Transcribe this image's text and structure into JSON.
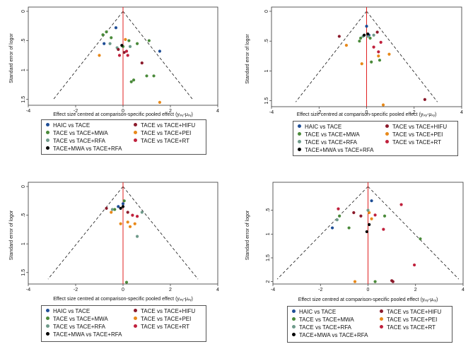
{
  "colors": {
    "HAIC vs TACE": "#1f4e96",
    "TACE vs TACE+HIFU": "#8b1a2b",
    "TACE vs TACE+MWA": "#4a8a3a",
    "TACE vs TACE+PEI": "#e8891a",
    "TACE vs TACE+RFA": "#6e9a8a",
    "TACE vs TACE+RT": "#c0203c",
    "TACE+MWA vs TACE+RFA": "#000000"
  },
  "chart_data": [
    {
      "type": "scatter",
      "subtype": "comparison-adjusted funnel plot",
      "xlabel": "Effect size centred at comparison-specific pooled effect (yᵢₓᵧ-μₓᵧ)",
      "ylabel": "Standard error of logor",
      "xlim": [
        -4,
        4
      ],
      "ylim": [
        0,
        1.6
      ],
      "xticks": [
        "-4",
        "-2",
        "0",
        "2",
        "4"
      ],
      "yticks": [
        "0",
        ".5",
        "1",
        "1.5"
      ],
      "legend": [
        "HAIC vs TACE",
        "TACE vs TACE+HIFU",
        "TACE vs TACE+MWA",
        "TACE vs TACE+PEI",
        "TACE vs TACE+RFA",
        "TACE vs TACE+RT",
        "TACE+MWA vs TACE+RFA"
      ],
      "points": [
        {
          "g": "HAIC vs TACE",
          "x": -0.3,
          "y": 0.28
        },
        {
          "g": "HAIC vs TACE",
          "x": -0.8,
          "y": 0.55
        },
        {
          "g": "HAIC vs TACE",
          "x": 1.55,
          "y": 0.68
        },
        {
          "g": "TACE vs TACE+MWA",
          "x": -0.85,
          "y": 0.4
        },
        {
          "g": "TACE vs TACE+MWA",
          "x": -0.7,
          "y": 0.35
        },
        {
          "g": "TACE vs TACE+MWA",
          "x": -0.5,
          "y": 0.45
        },
        {
          "g": "TACE vs TACE+MWA",
          "x": 0.25,
          "y": 0.5
        },
        {
          "g": "TACE vs TACE+MWA",
          "x": 0.6,
          "y": 0.55
        },
        {
          "g": "TACE vs TACE+MWA",
          "x": 1.1,
          "y": 0.5
        },
        {
          "g": "TACE vs TACE+MWA",
          "x": 0.35,
          "y": 1.2
        },
        {
          "g": "TACE vs TACE+MWA",
          "x": 0.45,
          "y": 1.17
        },
        {
          "g": "TACE vs TACE+MWA",
          "x": 1.0,
          "y": 1.1
        },
        {
          "g": "TACE vs TACE+MWA",
          "x": 1.3,
          "y": 1.1
        },
        {
          "g": "TACE vs TACE+MWA",
          "x": 0.0,
          "y": 0.6
        },
        {
          "g": "TACE vs TACE+PEI",
          "x": -1.0,
          "y": 0.75
        },
        {
          "g": "TACE vs TACE+PEI",
          "x": 0.1,
          "y": 0.48
        },
        {
          "g": "TACE vs TACE+PEI",
          "x": 1.55,
          "y": 1.55
        },
        {
          "g": "TACE vs TACE+RFA",
          "x": -0.55,
          "y": 0.55
        },
        {
          "g": "TACE vs TACE+RFA",
          "x": 0.3,
          "y": 0.6
        },
        {
          "g": "TACE vs TACE+RFA",
          "x": -0.25,
          "y": 0.62
        },
        {
          "g": "TACE vs TACE+HIFU",
          "x": -0.2,
          "y": 0.65
        },
        {
          "g": "TACE vs TACE+HIFU",
          "x": 0.05,
          "y": 0.7
        },
        {
          "g": "TACE vs TACE+HIFU",
          "x": 0.8,
          "y": 0.88
        },
        {
          "g": "TACE vs TACE+RT",
          "x": 0.2,
          "y": 0.75
        },
        {
          "g": "TACE vs TACE+RT",
          "x": 0.15,
          "y": 0.68
        },
        {
          "g": "TACE vs TACE+RT",
          "x": -0.15,
          "y": 0.75
        },
        {
          "g": "TACE+MWA vs TACE+RFA",
          "x": -0.05,
          "y": 0.58
        }
      ]
    },
    {
      "type": "scatter",
      "subtype": "comparison-adjusted funnel plot",
      "xlabel": "Effect size centred at comparison-specific pooled effect (yᵢₓᵧ-μₓᵧ)",
      "ylabel": "Standard error of logor",
      "xlim": [
        -4,
        4
      ],
      "ylim": [
        0,
        1.6
      ],
      "xticks": [
        "-4",
        "-2",
        "0",
        "2",
        "4"
      ],
      "yticks": [
        "0",
        ".5",
        "1",
        "1.5"
      ],
      "legend": [
        "HAIC vs TACE",
        "TACE vs TACE+HIFU",
        "TACE vs TACE+MWA",
        "TACE vs TACE+PEI",
        "TACE vs TACE+RFA",
        "TACE vs TACE+RT",
        "TACE+MWA vs TACE+RFA"
      ],
      "points": [
        {
          "g": "HAIC vs TACE",
          "x": 0.0,
          "y": 0.25
        },
        {
          "g": "HAIC vs TACE",
          "x": 0.1,
          "y": 0.4
        },
        {
          "g": "TACE vs TACE+HIFU",
          "x": -1.15,
          "y": 0.42
        },
        {
          "g": "TACE vs TACE+HIFU",
          "x": 0.45,
          "y": 0.35
        },
        {
          "g": "TACE vs TACE+HIFU",
          "x": 2.45,
          "y": 1.48
        },
        {
          "g": "TACE vs TACE+MWA",
          "x": -0.3,
          "y": 0.5
        },
        {
          "g": "TACE vs TACE+MWA",
          "x": -0.25,
          "y": 0.45
        },
        {
          "g": "TACE vs TACE+MWA",
          "x": 0.15,
          "y": 0.45
        },
        {
          "g": "TACE vs TACE+MWA",
          "x": 0.2,
          "y": 0.85
        },
        {
          "g": "TACE vs TACE+MWA",
          "x": 0.55,
          "y": 0.82
        },
        {
          "g": "TACE vs TACE+PEI",
          "x": -0.85,
          "y": 0.57
        },
        {
          "g": "TACE vs TACE+PEI",
          "x": 0.95,
          "y": 0.72
        },
        {
          "g": "TACE vs TACE+PEI",
          "x": 0.5,
          "y": 0.75
        },
        {
          "g": "TACE vs TACE+PEI",
          "x": -0.2,
          "y": 0.88
        },
        {
          "g": "TACE vs TACE+PEI",
          "x": 0.7,
          "y": 1.57
        },
        {
          "g": "TACE vs TACE+RFA",
          "x": -0.15,
          "y": 0.42
        },
        {
          "g": "TACE vs TACE+RFA",
          "x": 0.05,
          "y": 0.42
        },
        {
          "g": "TACE vs TACE+RFA",
          "x": 0.3,
          "y": 0.4
        },
        {
          "g": "TACE vs TACE+RT",
          "x": 0.6,
          "y": 0.52
        },
        {
          "g": "TACE vs TACE+RT",
          "x": 0.3,
          "y": 0.6
        },
        {
          "g": "TACE vs TACE+RT",
          "x": 0.5,
          "y": 0.68
        },
        {
          "g": "TACE+MWA vs TACE+RFA",
          "x": 0.05,
          "y": 0.38
        },
        {
          "g": "TACE+MWA vs TACE+RFA",
          "x": -0.1,
          "y": 0.4
        }
      ]
    },
    {
      "type": "scatter",
      "subtype": "comparison-adjusted funnel plot",
      "xlabel": "Effect size centred at comparison-specific pooled effect (yᵢₓᵧ-μₓᵧ)",
      "ylabel": "Standard error of logor",
      "xlim": [
        -4,
        4
      ],
      "ylim": [
        0,
        1.7
      ],
      "xticks": [
        "-4",
        "-2",
        "0",
        "2",
        "4"
      ],
      "yticks": [
        "0",
        ".5",
        "1",
        "1.5"
      ],
      "legend": [
        "HAIC vs TACE",
        "TACE vs TACE+HIFU",
        "TACE vs TACE+MWA",
        "TACE vs TACE+PEI",
        "TACE vs TACE+RFA",
        "TACE vs TACE+RT",
        "TACE+MWA vs TACE+RFA"
      ],
      "points": [
        {
          "g": "HAIC vs TACE",
          "x": -0.2,
          "y": 0.35
        },
        {
          "g": "HAIC vs TACE",
          "x": 0.0,
          "y": 0.3
        },
        {
          "g": "TACE vs TACE+HIFU",
          "x": -0.7,
          "y": 0.38
        },
        {
          "g": "TACE vs TACE+HIFU",
          "x": 0.2,
          "y": 0.45
        },
        {
          "g": "TACE vs TACE+MWA",
          "x": -0.35,
          "y": 0.4
        },
        {
          "g": "TACE vs TACE+MWA",
          "x": 0.05,
          "y": 0.25
        },
        {
          "g": "TACE vs TACE+MWA",
          "x": 0.15,
          "y": 1.67
        },
        {
          "g": "TACE vs TACE+PEI",
          "x": -0.5,
          "y": 0.45
        },
        {
          "g": "TACE vs TACE+PEI",
          "x": -0.1,
          "y": 0.65
        },
        {
          "g": "TACE vs TACE+PEI",
          "x": 0.2,
          "y": 0.62
        },
        {
          "g": "TACE vs TACE+PEI",
          "x": 0.3,
          "y": 0.7
        },
        {
          "g": "TACE vs TACE+PEI",
          "x": 0.5,
          "y": 0.65
        },
        {
          "g": "TACE vs TACE+RFA",
          "x": -0.45,
          "y": 0.4
        },
        {
          "g": "TACE vs TACE+RFA",
          "x": 0.8,
          "y": 0.45
        },
        {
          "g": "TACE vs TACE+RFA",
          "x": 0.6,
          "y": 0.87
        },
        {
          "g": "TACE vs TACE+RT",
          "x": 0.4,
          "y": 0.5
        },
        {
          "g": "TACE vs TACE+RT",
          "x": 0.6,
          "y": 0.52
        },
        {
          "g": "TACE+MWA vs TACE+RFA",
          "x": -0.1,
          "y": 0.38
        },
        {
          "g": "TACE+MWA vs TACE+RFA",
          "x": 0.0,
          "y": 0.35
        }
      ]
    },
    {
      "type": "scatter",
      "subtype": "comparison-adjusted funnel plot",
      "xlabel": "Effect size centred at comparison-specific pooled effect (yᵢₓᵧ-μₓᵧ)",
      "ylabel": "Standard error of logor",
      "xlim": [
        -4,
        4
      ],
      "ylim": [
        0,
        2.05
      ],
      "xticks": [
        "-4",
        "-2",
        "0",
        "2",
        "4"
      ],
      "yticks": [
        ".5",
        "1",
        "1.5",
        "2"
      ],
      "legend": [
        "HAIC vs TACE",
        "TACE vs TACE+HIFU",
        "TACE vs TACE+MWA",
        "TACE vs TACE+PEI",
        "TACE vs TACE+RFA",
        "TACE vs TACE+RT",
        "TACE+MWA vs TACE+RFA"
      ],
      "points": [
        {
          "g": "HAIC vs TACE",
          "x": -1.5,
          "y": 0.87
        },
        {
          "g": "HAIC vs TACE",
          "x": 0.15,
          "y": 0.3
        },
        {
          "g": "TACE vs TACE+HIFU",
          "x": -0.6,
          "y": 0.55
        },
        {
          "g": "TACE vs TACE+HIFU",
          "x": -0.3,
          "y": 0.62
        },
        {
          "g": "TACE vs TACE+HIFU",
          "x": 1.0,
          "y": 1.98
        },
        {
          "g": "TACE vs TACE+HIFU",
          "x": 1.05,
          "y": 2.0
        },
        {
          "g": "TACE vs TACE+MWA",
          "x": -0.8,
          "y": 0.87
        },
        {
          "g": "TACE vs TACE+MWA",
          "x": -1.2,
          "y": 0.62
        },
        {
          "g": "TACE vs TACE+MWA",
          "x": 0.7,
          "y": 0.62
        },
        {
          "g": "TACE vs TACE+MWA",
          "x": 2.2,
          "y": 1.1
        },
        {
          "g": "TACE vs TACE+MWA",
          "x": 0.3,
          "y": 2.0
        },
        {
          "g": "TACE vs TACE+PEI",
          "x": 0.05,
          "y": 0.55
        },
        {
          "g": "TACE vs TACE+PEI",
          "x": -0.55,
          "y": 2.0
        },
        {
          "g": "TACE vs TACE+PEI",
          "x": 0.15,
          "y": 0.68
        },
        {
          "g": "TACE vs TACE+RFA",
          "x": -1.3,
          "y": 0.7
        },
        {
          "g": "TACE vs TACE+RFA",
          "x": 0.0,
          "y": 0.5
        },
        {
          "g": "TACE vs TACE+RT",
          "x": -1.25,
          "y": 0.47
        },
        {
          "g": "TACE vs TACE+RT",
          "x": 1.4,
          "y": 0.38
        },
        {
          "g": "TACE vs TACE+RT",
          "x": 0.65,
          "y": 0.9
        },
        {
          "g": "TACE vs TACE+RT",
          "x": 1.95,
          "y": 1.65
        },
        {
          "g": "TACE vs TACE+RT",
          "x": 0.3,
          "y": 0.6
        },
        {
          "g": "TACE+MWA vs TACE+RFA",
          "x": 0.05,
          "y": 0.8
        },
        {
          "g": "TACE+MWA vs TACE+RFA",
          "x": -0.05,
          "y": 0.95
        }
      ]
    }
  ]
}
